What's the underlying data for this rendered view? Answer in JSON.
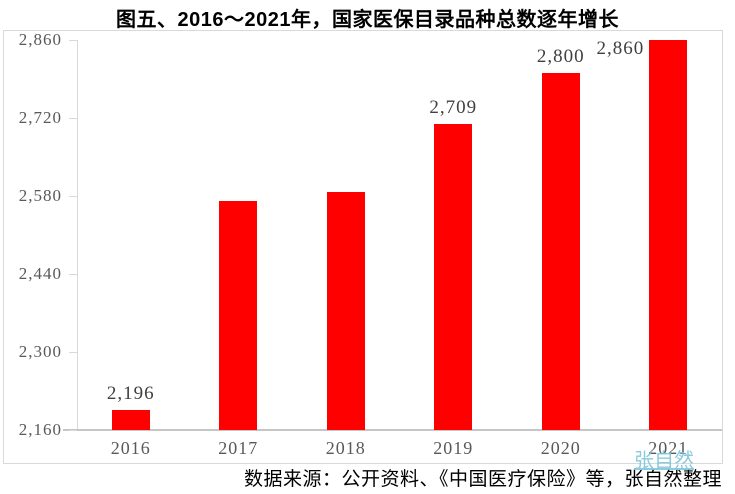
{
  "title": "图五、2016～2021年，国家医保目录品种总数逐年增长",
  "footer": "数据来源：公开资料、《中国医疗保险》等，张自然整理",
  "watermark": "张自然",
  "colors": {
    "bar": "#ff0000",
    "axis_line": "#d9d9d9",
    "x_axis_line": "#c6c6c6",
    "axis_label": "#595959",
    "data_label": "#404040",
    "title": "#000000",
    "watermark": "#7ec6db"
  },
  "chart_data": {
    "type": "bar",
    "title": "图五、2016～2021年，国家医保目录品种总数逐年增长",
    "categories": [
      "2016",
      "2017",
      "2018",
      "2019",
      "2020",
      "2021"
    ],
    "values": [
      2196,
      2571,
      2588,
      2709,
      2800,
      2860
    ],
    "data_labels": [
      "2,196",
      null,
      null,
      "2,709",
      "2,800",
      "2,860"
    ],
    "data_label_positions": [
      "above",
      null,
      null,
      "above",
      "above",
      "left"
    ],
    "xlabel": "",
    "ylabel": "",
    "ylim": [
      2160,
      2860
    ],
    "ytick_step": 140,
    "ytick_labels": [
      "2,160",
      "2,300",
      "2,440",
      "2,580",
      "2,720",
      "2,860"
    ],
    "grid": false,
    "legend": null,
    "series_color": "#ff0000"
  }
}
